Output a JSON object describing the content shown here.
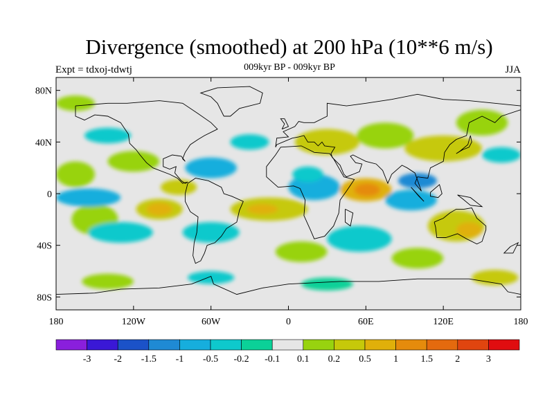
{
  "title": "Divergence (smoothed) at 200 hPa (10**6 m/s)",
  "subtitle": "009kyr BP - 009kyr BP",
  "left_label": "Expt = tdxoj-tdwtj",
  "right_label": "JJA",
  "colors": {
    "background_field": "#e6e6e6",
    "frame": "#000000"
  },
  "lat_ticks": [
    {
      "lat": 80,
      "label": "80N"
    },
    {
      "lat": 40,
      "label": "40N"
    },
    {
      "lat": 0,
      "label": "0"
    },
    {
      "lat": -40,
      "label": "40S"
    },
    {
      "lat": -80,
      "label": "80S"
    }
  ],
  "lon_ticks": [
    {
      "lon": -180,
      "label": "180"
    },
    {
      "lon": -120,
      "label": "120W"
    },
    {
      "lon": -60,
      "label": "60W"
    },
    {
      "lon": 0,
      "label": "0"
    },
    {
      "lon": 60,
      "label": "60E"
    },
    {
      "lon": 120,
      "label": "120E"
    },
    {
      "lon": 180,
      "label": "180"
    }
  ],
  "colorbar": {
    "colors": [
      "#8a1fdc",
      "#3a18d6",
      "#1b52c8",
      "#1f8ad4",
      "#16aedd",
      "#0ec9cc",
      "#0bd198",
      "#e6e6e6",
      "#98d30f",
      "#c6c90a",
      "#e0b00a",
      "#e58b0c",
      "#e46a0e",
      "#e0450f",
      "#e00d10"
    ],
    "labels": [
      "-3",
      "-2",
      "-1.5",
      "-1",
      "-0.5",
      "-0.2",
      "-0.1",
      "0.1",
      "0.2",
      "0.5",
      "1",
      "1.5",
      "2",
      "3"
    ]
  },
  "field_blobs": [
    {
      "lon": 60,
      "lat": 3,
      "rx": 20,
      "ry": 9,
      "color": "#e0b00a"
    },
    {
      "lon": 61,
      "lat": 3,
      "rx": 10,
      "ry": 5,
      "color": "#e58b0c"
    },
    {
      "lon": -100,
      "lat": -12,
      "rx": 18,
      "ry": 8,
      "color": "#c6c90a"
    },
    {
      "lon": -100,
      "lat": -12,
      "rx": 10,
      "ry": 5,
      "color": "#e0b00a"
    },
    {
      "lon": -85,
      "lat": 5,
      "rx": 14,
      "ry": 6,
      "color": "#c6c90a"
    },
    {
      "lon": -15,
      "lat": -12,
      "rx": 30,
      "ry": 9,
      "color": "#c6c90a"
    },
    {
      "lon": -20,
      "lat": -12,
      "rx": 12,
      "ry": 4,
      "color": "#e0b00a"
    },
    {
      "lon": 130,
      "lat": -25,
      "rx": 22,
      "ry": 12,
      "color": "#c6c90a"
    },
    {
      "lon": 140,
      "lat": -28,
      "rx": 10,
      "ry": 6,
      "color": "#e0b00a"
    },
    {
      "lon": 120,
      "lat": 35,
      "rx": 30,
      "ry": 10,
      "color": "#c6c90a"
    },
    {
      "lon": 30,
      "lat": 40,
      "rx": 25,
      "ry": 10,
      "color": "#c6c90a"
    },
    {
      "lon": 75,
      "lat": 45,
      "rx": 22,
      "ry": 10,
      "color": "#98d30f"
    },
    {
      "lon": -165,
      "lat": 15,
      "rx": 15,
      "ry": 10,
      "color": "#98d30f"
    },
    {
      "lon": -150,
      "lat": -20,
      "rx": 18,
      "ry": 12,
      "color": "#98d30f"
    },
    {
      "lon": -120,
      "lat": 25,
      "rx": 20,
      "ry": 8,
      "color": "#98d30f"
    },
    {
      "lon": 10,
      "lat": -45,
      "rx": 20,
      "ry": 8,
      "color": "#98d30f"
    },
    {
      "lon": 100,
      "lat": -50,
      "rx": 20,
      "ry": 8,
      "color": "#98d30f"
    },
    {
      "lon": 160,
      "lat": -65,
      "rx": 18,
      "ry": 6,
      "color": "#c6c90a"
    },
    {
      "lon": -140,
      "lat": -68,
      "rx": 20,
      "ry": 6,
      "color": "#98d30f"
    },
    {
      "lon": 150,
      "lat": 55,
      "rx": 20,
      "ry": 10,
      "color": "#98d30f"
    },
    {
      "lon": -165,
      "lat": 70,
      "rx": 15,
      "ry": 6,
      "color": "#98d30f"
    },
    {
      "lon": -155,
      "lat": -3,
      "rx": 25,
      "ry": 7,
      "color": "#16aedd"
    },
    {
      "lon": -60,
      "lat": 20,
      "rx": 20,
      "ry": 8,
      "color": "#16aedd"
    },
    {
      "lon": -130,
      "lat": -30,
      "rx": 25,
      "ry": 8,
      "color": "#0ec9cc"
    },
    {
      "lon": -60,
      "lat": -30,
      "rx": 22,
      "ry": 8,
      "color": "#0ec9cc"
    },
    {
      "lon": 20,
      "lat": 5,
      "rx": 20,
      "ry": 10,
      "color": "#16aedd"
    },
    {
      "lon": 95,
      "lat": -5,
      "rx": 20,
      "ry": 8,
      "color": "#16aedd"
    },
    {
      "lon": 100,
      "lat": 10,
      "rx": 15,
      "ry": 6,
      "color": "#1f8ad4"
    },
    {
      "lon": 55,
      "lat": -35,
      "rx": 25,
      "ry": 10,
      "color": "#0ec9cc"
    },
    {
      "lon": 15,
      "lat": 15,
      "rx": 12,
      "ry": 6,
      "color": "#0ec9cc"
    },
    {
      "lon": -140,
      "lat": 45,
      "rx": 18,
      "ry": 6,
      "color": "#0ec9cc"
    },
    {
      "lon": -30,
      "lat": 40,
      "rx": 15,
      "ry": 6,
      "color": "#0ec9cc"
    },
    {
      "lon": 165,
      "lat": 30,
      "rx": 15,
      "ry": 6,
      "color": "#0ec9cc"
    },
    {
      "lon": -60,
      "lat": -65,
      "rx": 18,
      "ry": 5,
      "color": "#0ec9cc"
    },
    {
      "lon": 30,
      "lat": -70,
      "rx": 20,
      "ry": 5,
      "color": "#0bd198"
    }
  ],
  "land_outlines": [
    [
      [
        -165,
        68
      ],
      [
        -140,
        70
      ],
      [
        -125,
        70
      ],
      [
        -100,
        72
      ],
      [
        -82,
        70
      ],
      [
        -70,
        62
      ],
      [
        -60,
        55
      ],
      [
        -55,
        50
      ],
      [
        -65,
        45
      ],
      [
        -70,
        42
      ],
      [
        -76,
        38
      ],
      [
        -80,
        32
      ],
      [
        -82,
        27
      ],
      [
        -80,
        25
      ],
      [
        -83,
        29
      ],
      [
        -90,
        30
      ],
      [
        -97,
        27
      ],
      [
        -97,
        21
      ],
      [
        -92,
        19
      ],
      [
        -87,
        21
      ],
      [
        -88,
        16
      ],
      [
        -83,
        10
      ],
      [
        -80,
        8
      ],
      [
        -78,
        9
      ],
      [
        -82,
        8
      ],
      [
        -86,
        12
      ],
      [
        -92,
        15
      ],
      [
        -105,
        20
      ],
      [
        -110,
        24
      ],
      [
        -115,
        30
      ],
      [
        -118,
        34
      ],
      [
        -123,
        39
      ],
      [
        -124,
        46
      ],
      [
        -130,
        55
      ],
      [
        -140,
        60
      ],
      [
        -150,
        61
      ],
      [
        -158,
        57
      ],
      [
        -165,
        60
      ],
      [
        -165,
        68
      ]
    ],
    [
      [
        -78,
        8
      ],
      [
        -72,
        12
      ],
      [
        -62,
        10
      ],
      [
        -52,
        5
      ],
      [
        -50,
        0
      ],
      [
        -44,
        -2
      ],
      [
        -35,
        -6
      ],
      [
        -38,
        -13
      ],
      [
        -40,
        -22
      ],
      [
        -48,
        -27
      ],
      [
        -52,
        -33
      ],
      [
        -57,
        -38
      ],
      [
        -63,
        -40
      ],
      [
        -65,
        -46
      ],
      [
        -68,
        -52
      ],
      [
        -72,
        -54
      ],
      [
        -74,
        -48
      ],
      [
        -73,
        -38
      ],
      [
        -71,
        -30
      ],
      [
        -70,
        -18
      ],
      [
        -76,
        -14
      ],
      [
        -80,
        -6
      ],
      [
        -80,
        0
      ],
      [
        -78,
        8
      ]
    ],
    [
      [
        -17,
        21
      ],
      [
        -10,
        30
      ],
      [
        -6,
        36
      ],
      [
        10,
        37
      ],
      [
        20,
        32
      ],
      [
        32,
        31
      ],
      [
        35,
        27
      ],
      [
        43,
        13
      ],
      [
        51,
        11
      ],
      [
        45,
        2
      ],
      [
        40,
        -5
      ],
      [
        39,
        -15
      ],
      [
        35,
        -25
      ],
      [
        28,
        -33
      ],
      [
        20,
        -35
      ],
      [
        17,
        -28
      ],
      [
        12,
        -17
      ],
      [
        13,
        -5
      ],
      [
        9,
        4
      ],
      [
        4,
        6
      ],
      [
        -8,
        5
      ],
      [
        -17,
        13
      ],
      [
        -17,
        21
      ]
    ],
    [
      [
        -10,
        36
      ],
      [
        -9,
        43
      ],
      [
        0,
        44
      ],
      [
        -4,
        48
      ],
      [
        5,
        52
      ],
      [
        8,
        56
      ],
      [
        12,
        55
      ],
      [
        20,
        55
      ],
      [
        30,
        60
      ],
      [
        30,
        70
      ],
      [
        45,
        68
      ],
      [
        60,
        70
      ],
      [
        80,
        73
      ],
      [
        100,
        77
      ],
      [
        120,
        73
      ],
      [
        140,
        72
      ],
      [
        160,
        70
      ],
      [
        180,
        68
      ],
      [
        180,
        65
      ],
      [
        165,
        60
      ],
      [
        160,
        55
      ],
      [
        150,
        60
      ],
      [
        140,
        55
      ],
      [
        138,
        45
      ],
      [
        130,
        42
      ],
      [
        125,
        38
      ],
      [
        121,
        32
      ],
      [
        120,
        25
      ],
      [
        110,
        20
      ],
      [
        108,
        12
      ],
      [
        100,
        13
      ],
      [
        98,
        8
      ],
      [
        103,
        2
      ],
      [
        98,
        16
      ],
      [
        92,
        20
      ],
      [
        88,
        22
      ],
      [
        80,
        15
      ],
      [
        77,
        8
      ],
      [
        73,
        18
      ],
      [
        68,
        23
      ],
      [
        60,
        25
      ],
      [
        56,
        27
      ],
      [
        50,
        30
      ],
      [
        48,
        29
      ],
      [
        52,
        24
      ],
      [
        57,
        23
      ],
      [
        55,
        17
      ],
      [
        45,
        13
      ],
      [
        43,
        15
      ],
      [
        40,
        22
      ],
      [
        34,
        28
      ],
      [
        33,
        31
      ],
      [
        36,
        36
      ],
      [
        28,
        37
      ],
      [
        26,
        40
      ],
      [
        23,
        37
      ],
      [
        20,
        40
      ],
      [
        15,
        40
      ],
      [
        12,
        45
      ],
      [
        8,
        44
      ],
      [
        3,
        43
      ],
      [
        -9,
        38
      ],
      [
        -10,
        36
      ]
    ],
    [
      [
        113,
        -22
      ],
      [
        114,
        -26
      ],
      [
        115,
        -34
      ],
      [
        122,
        -34
      ],
      [
        131,
        -31
      ],
      [
        138,
        -35
      ],
      [
        146,
        -39
      ],
      [
        150,
        -37
      ],
      [
        153,
        -28
      ],
      [
        153,
        -25
      ],
      [
        146,
        -19
      ],
      [
        142,
        -11
      ],
      [
        136,
        -12
      ],
      [
        130,
        -12
      ],
      [
        125,
        -15
      ],
      [
        120,
        -19
      ],
      [
        113,
        -22
      ]
    ],
    [
      [
        -50,
        60
      ],
      [
        -45,
        60
      ],
      [
        -38,
        66
      ],
      [
        -22,
        70
      ],
      [
        -20,
        78
      ],
      [
        -30,
        83
      ],
      [
        -55,
        82
      ],
      [
        -68,
        78
      ],
      [
        -60,
        75
      ],
      [
        -55,
        70
      ],
      [
        -50,
        60
      ]
    ],
    [
      [
        -180,
        -78
      ],
      [
        -150,
        -77
      ],
      [
        -130,
        -74
      ],
      [
        -100,
        -73
      ],
      [
        -75,
        -70
      ],
      [
        -60,
        -64
      ],
      [
        -58,
        -70
      ],
      [
        -40,
        -78
      ],
      [
        -20,
        -73
      ],
      [
        0,
        -70
      ],
      [
        40,
        -68
      ],
      [
        70,
        -68
      ],
      [
        100,
        -66
      ],
      [
        140,
        -66
      ],
      [
        165,
        -70
      ],
      [
        170,
        -76
      ],
      [
        180,
        -78
      ]
    ],
    [
      [
        -5,
        50
      ],
      [
        -3,
        54
      ],
      [
        -6,
        58
      ],
      [
        -3,
        58
      ],
      [
        0,
        52
      ],
      [
        -5,
        50
      ]
    ],
    [
      [
        130,
        31
      ],
      [
        135,
        34
      ],
      [
        140,
        36
      ],
      [
        142,
        40
      ],
      [
        141,
        45
      ],
      [
        139,
        38
      ],
      [
        133,
        33
      ],
      [
        130,
        31
      ]
    ],
    [
      [
        95,
        5
      ],
      [
        105,
        -6
      ],
      [
        101,
        -2
      ],
      [
        95,
        5
      ]
    ],
    [
      [
        110,
        1
      ],
      [
        117,
        7
      ],
      [
        119,
        0
      ],
      [
        116,
        -3
      ],
      [
        110,
        -2
      ],
      [
        110,
        1
      ]
    ],
    [
      [
        131,
        -1
      ],
      [
        141,
        -3
      ],
      [
        150,
        -10
      ],
      [
        141,
        -9
      ],
      [
        135,
        -4
      ],
      [
        131,
        -1
      ]
    ],
    [
      [
        44,
        -12
      ],
      [
        50,
        -15
      ],
      [
        48,
        -25
      ],
      [
        44,
        -22
      ],
      [
        44,
        -12
      ]
    ],
    [
      [
        172,
        -41
      ],
      [
        178,
        -38
      ],
      [
        174,
        -46
      ],
      [
        167,
        -46
      ],
      [
        172,
        -41
      ]
    ]
  ]
}
